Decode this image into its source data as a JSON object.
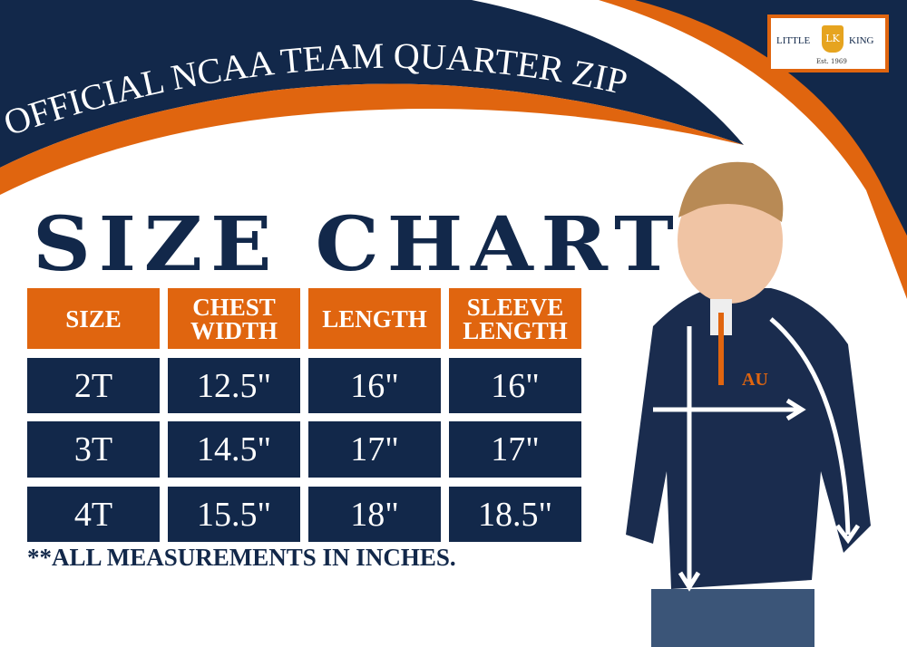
{
  "banner": {
    "title": "OFFICIAL NCAA TEAM QUARTER ZIP"
  },
  "logo": {
    "left": "LITTLE",
    "monogram": "LK",
    "right": "KING",
    "est": "Est. 1969"
  },
  "chart_title": "SIZE CHART",
  "table": {
    "headers": [
      "SIZE",
      "CHEST\nWIDTH",
      "LENGTH",
      "SLEEVE\nLENGTH"
    ],
    "rows": [
      [
        "2T",
        "12.5\"",
        "16\"",
        "16\""
      ],
      [
        "3T",
        "14.5\"",
        "17\"",
        "17\""
      ],
      [
        "4T",
        "15.5\"",
        "18\"",
        "18.5\""
      ]
    ]
  },
  "note": "**ALL MEASUREMENTS IN INCHES.",
  "jacket_logo": "AU",
  "colors": {
    "navy": "#12284a",
    "orange": "#e0650f"
  }
}
